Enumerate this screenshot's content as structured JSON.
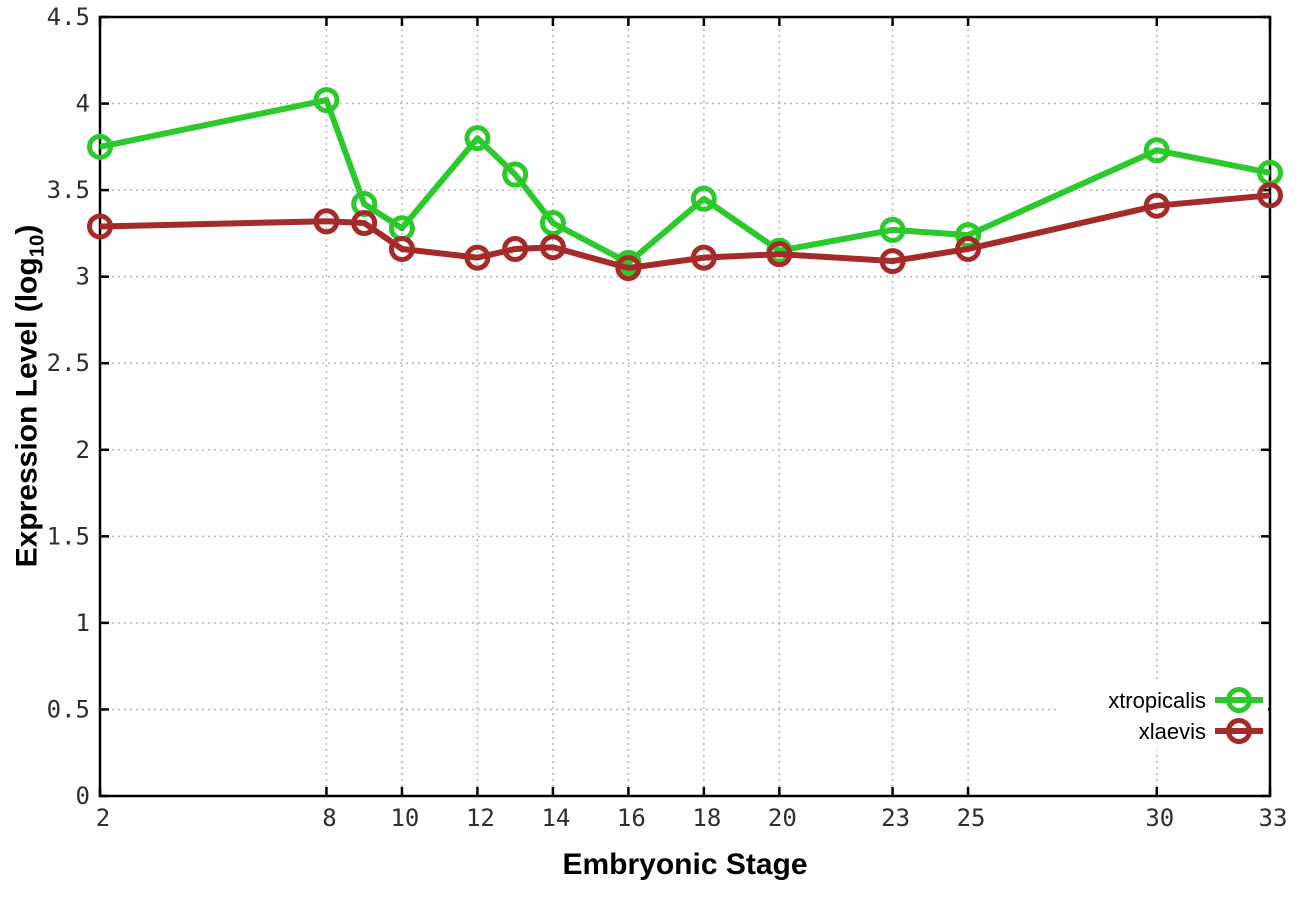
{
  "styles": {
    "background": "#ffffff",
    "axis_color": "#000000",
    "grid_color": "#b8b8b8",
    "tick_label_color": "#2e2e2e",
    "green_series_color": "#2cc92c",
    "red_series_color": "#a52a2a"
  },
  "chart_data": {
    "type": "line",
    "title": "",
    "xlabel": "Embryonic Stage",
    "ylabel": {
      "pre": "Expression Level (log",
      "sub": "10",
      "post": ")"
    },
    "xlim": [
      2,
      33
    ],
    "ylim": [
      0,
      4.5
    ],
    "grid": "dotted",
    "x_ticks": [
      2,
      8,
      10,
      12,
      14,
      16,
      18,
      20,
      23,
      25,
      30,
      33
    ],
    "x_tick_labels": [
      "2",
      "8",
      "10",
      "12",
      "14",
      "16",
      "18",
      "20",
      "23",
      "25",
      "30",
      "33"
    ],
    "y_ticks": [
      0,
      0.5,
      1,
      1.5,
      2,
      2.5,
      3,
      3.5,
      4,
      4.5
    ],
    "y_tick_labels": [
      "0",
      "0.5",
      "1",
      "1.5",
      "2",
      "2.5",
      "3",
      "3.5",
      "4",
      "4.5"
    ],
    "x": [
      2,
      8,
      9,
      10,
      12,
      13,
      14,
      16,
      18,
      20,
      23,
      25,
      30,
      33
    ],
    "series": [
      {
        "name": "xtropicalis",
        "color": "#2cc92c",
        "marker": "open-circle",
        "values": [
          3.75,
          4.02,
          3.42,
          3.28,
          3.8,
          3.59,
          3.31,
          3.08,
          3.45,
          3.15,
          3.27,
          3.24,
          3.73,
          3.6
        ]
      },
      {
        "name": "xlaevis",
        "color": "#a52a2a",
        "marker": "open-circle",
        "values": [
          3.29,
          3.32,
          3.31,
          3.16,
          3.11,
          3.16,
          3.17,
          3.05,
          3.11,
          3.13,
          3.09,
          3.16,
          3.41,
          3.47
        ]
      }
    ],
    "legend": {
      "position": "bottom-right",
      "entries": [
        "xtropicalis",
        "xlaevis"
      ]
    }
  }
}
